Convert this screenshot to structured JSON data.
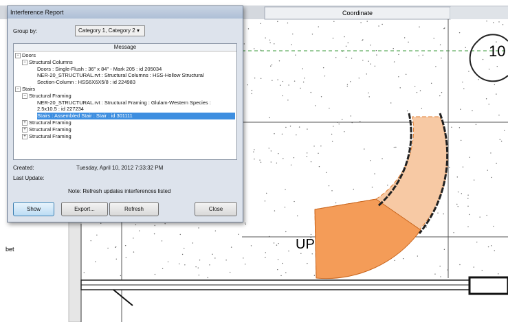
{
  "dialog": {
    "title": "Interference Report",
    "group_by_label": "Group by:",
    "group_by_value": "Category 1, Category 2",
    "column_header": "Message",
    "tree": [
      "Doors",
      "Structural Columns",
      "Doors : Single-Flush : 36\" x 84\" - Mark 205 : id 205034",
      "NER-20_STRUCTURAL.rvt : Structural Columns : HSS-Hollow Structural",
      "Section-Column : HSS6X6X5/8 : id 224983",
      "Stairs",
      "Structural Framing",
      "NER-20_STRUCTURAL.rvt : Structural Framing : Glulam-Western Species :",
      "2.5x10.5 : id 227234",
      "Stairs : Assembled Stair : Stair : id 301111",
      "Structural Framing",
      "Structural Framing",
      "Structural Framing"
    ],
    "created_label": "Created:",
    "created_value": "Tuesday, April 10, 2012 7:33:32 PM",
    "last_update_label": "Last Update:",
    "note": "Note: Refresh updates interferences listed",
    "buttons": [
      "Show",
      "Export...",
      "Refresh",
      "Close"
    ]
  },
  "background": {
    "tab": "Coordinate",
    "grid_label": "10",
    "stair_label": "UP",
    "side_text": "bet"
  }
}
